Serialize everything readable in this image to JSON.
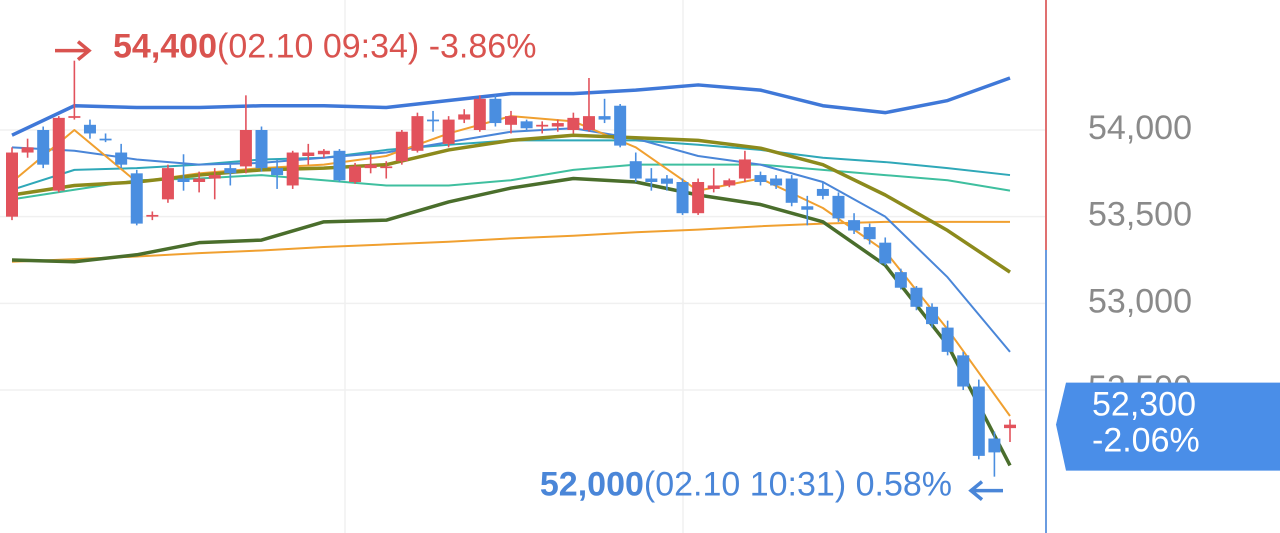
{
  "chart_data": {
    "type": "candlestick",
    "open": [
      53500,
      53870,
      54000,
      53650,
      54070,
      54030,
      53950,
      53870,
      53750,
      53500,
      53600,
      53720,
      53700,
      53720,
      53780,
      53790,
      54000,
      53780,
      53680,
      53850,
      53860,
      53880,
      53700,
      53780,
      53780,
      53820,
      53880,
      54060,
      53920,
      54060,
      54000,
      54180,
      54030,
      54050,
      54020,
      54020,
      54000,
      54000,
      54080,
      54140,
      53820,
      53720,
      53720,
      53700,
      53520,
      53660,
      53680,
      53720,
      53740,
      53720,
      53720,
      53560,
      53660,
      53620,
      53480,
      53440,
      53350,
      53180,
      53090,
      52980,
      52860,
      52700,
      52520,
      52220,
      52280
    ],
    "high": [
      53900,
      53950,
      54020,
      54080,
      54400,
      54060,
      53980,
      53920,
      53770,
      53530,
      53800,
      53860,
      53760,
      53780,
      53800,
      54200,
      54020,
      53830,
      53880,
      53920,
      53890,
      53890,
      53810,
      53860,
      53820,
      54000,
      54100,
      54110,
      54080,
      54120,
      54200,
      54200,
      54110,
      54060,
      54050,
      54060,
      54100,
      54300,
      54180,
      54150,
      53870,
      53780,
      53740,
      53720,
      53720,
      53780,
      53720,
      53880,
      53760,
      53740,
      53740,
      53620,
      53700,
      53640,
      53520,
      53460,
      53380,
      53200,
      53100,
      53000,
      52900,
      52720,
      52560,
      52260,
      52330
    ],
    "low": [
      53480,
      53840,
      53780,
      53640,
      54060,
      53950,
      53930,
      53780,
      53450,
      53480,
      53580,
      53650,
      53640,
      53600,
      53680,
      53750,
      53760,
      53660,
      53660,
      53800,
      53840,
      53700,
      53690,
      53750,
      53720,
      53800,
      53870,
      53990,
      53900,
      54040,
      53990,
      54020,
      53980,
      53990,
      53980,
      53990,
      53980,
      53990,
      54040,
      53900,
      53700,
      53650,
      53650,
      53510,
      53510,
      53640,
      53670,
      53700,
      53680,
      53660,
      53560,
      53450,
      53600,
      53470,
      53400,
      53340,
      53220,
      53080,
      52960,
      52860,
      52700,
      52500,
      52100,
      52000,
      52200
    ],
    "close": [
      53870,
      53900,
      53800,
      54070,
      54080,
      53980,
      53940,
      53800,
      53460,
      53510,
      53780,
      53700,
      53720,
      53740,
      53750,
      54000,
      53780,
      53740,
      53870,
      53870,
      53880,
      53710,
      53790,
      53800,
      53790,
      53990,
      54080,
      54050,
      54060,
      54090,
      54180,
      54040,
      54080,
      54010,
      54030,
      54040,
      54070,
      54080,
      54060,
      53910,
      53720,
      53700,
      53690,
      53520,
      53700,
      53680,
      53710,
      53830,
      53700,
      53680,
      53580,
      53540,
      53620,
      53490,
      53420,
      53370,
      53230,
      53090,
      52980,
      52880,
      52720,
      52520,
      52120,
      52140,
      52300
    ],
    "up_color": "#e2525c",
    "down_color": "#4a8ee0",
    "overlay_x": [
      0,
      4,
      8,
      12,
      16,
      20,
      24,
      28,
      32,
      36,
      40,
      44,
      48,
      52,
      56,
      60,
      64
    ],
    "overlays": [
      {
        "color": "#f0a030",
        "values": [
          53240,
          53255,
          53270,
          53290,
          53305,
          53325,
          53340,
          53355,
          53375,
          53390,
          53410,
          53425,
          53445,
          53460,
          53470,
          53470,
          53470
        ]
      },
      {
        "color": "#3fbf9f",
        "values": [
          53600,
          53655,
          53710,
          53720,
          53740,
          53710,
          53680,
          53680,
          53710,
          53770,
          53800,
          53800,
          53800,
          53770,
          53740,
          53710,
          53650
        ]
      },
      {
        "color": "#2fa8b8",
        "values": [
          53655,
          53770,
          53780,
          53800,
          53830,
          53840,
          53885,
          53915,
          53940,
          53940,
          53940,
          53915,
          53885,
          53840,
          53815,
          53780,
          53740
        ]
      },
      {
        "color": "#4a86d8",
        "values": [
          53900,
          53880,
          53830,
          53800,
          53810,
          53840,
          53870,
          53930,
          53990,
          54010,
          53950,
          53850,
          53800,
          53700,
          53500,
          53150,
          52720
        ]
      },
      {
        "color": "#f0a030",
        "values": [
          53700,
          54000,
          53700,
          53750,
          53780,
          53800,
          53850,
          53980,
          54080,
          54050,
          53900,
          53650,
          53720,
          53550,
          53300,
          52850,
          52350
        ]
      },
      {
        "color": "#8c8a1c",
        "values": [
          53625,
          53680,
          53700,
          53740,
          53770,
          53780,
          53800,
          53885,
          53940,
          53970,
          53955,
          53940,
          53895,
          53800,
          53625,
          53420,
          53180
        ]
      },
      {
        "color": "#4a6e2c",
        "values": [
          53250,
          53240,
          53280,
          53350,
          53365,
          53470,
          53480,
          53585,
          53665,
          53720,
          53700,
          53625,
          53570,
          53470,
          53220,
          52760,
          52065
        ]
      },
      {
        "color": "#3f78d8",
        "values": [
          53970,
          54140,
          54130,
          54130,
          54140,
          54140,
          54130,
          54170,
          54210,
          54210,
          54230,
          54260,
          54230,
          54140,
          54100,
          54170,
          54300
        ]
      }
    ],
    "ylim": [
      51675,
      54750
    ],
    "yticks": [
      {
        "value": 52500,
        "label": "52,500"
      },
      {
        "value": 53000,
        "label": "53,000"
      },
      {
        "value": 53500,
        "label": "53,500"
      },
      {
        "value": 54000,
        "label": "54,000"
      }
    ],
    "grid": true,
    "high_marker": {
      "value": 54400,
      "label": "54,400",
      "detail": "(02.10 09:34) -3.86%",
      "color": "#d9534f"
    },
    "low_marker": {
      "value": 52000,
      "label": "52,000",
      "detail": "(02.10 10:31) 0.58%",
      "color": "#4a86d8"
    },
    "current": {
      "value": 52300,
      "label": "52,300",
      "change": "-2.06%",
      "color": "#4a8ee8"
    }
  }
}
